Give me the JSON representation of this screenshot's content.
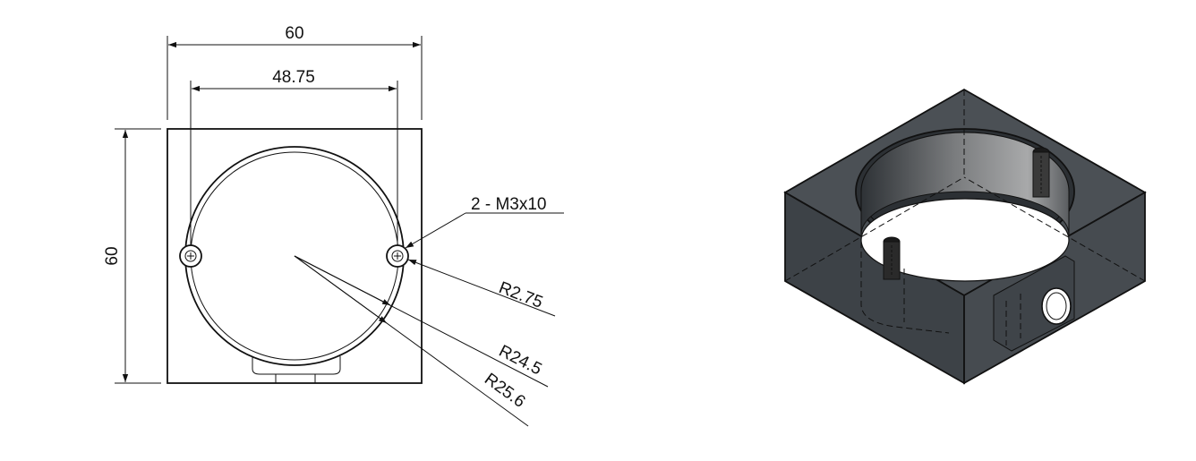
{
  "front_view": {
    "dim_overall_width": "60",
    "dim_hole_spacing": "48.75",
    "dim_overall_height": "60",
    "callout_holes": "2 - M3x10",
    "callout_r_small": "R2.75",
    "callout_r_inner": "R24.5",
    "callout_r_outer": "R25.6"
  },
  "colors": {
    "line": "#111111",
    "block_top": "#4a4f54",
    "block_front": "#3a3f44",
    "block_side": "#44494e",
    "bore": "#6a6a6a"
  }
}
